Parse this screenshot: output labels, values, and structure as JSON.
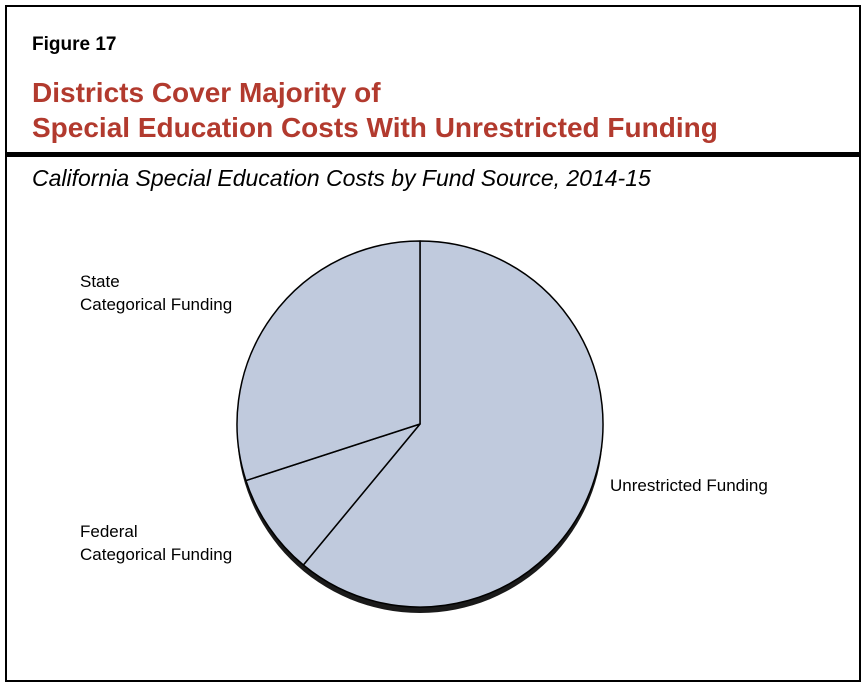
{
  "figure_label": "Figure 17",
  "title_lines": [
    "Districts Cover Majority of",
    "Special Education Costs With Unrestricted Funding"
  ],
  "colors": {
    "title": "#b23a2e",
    "slice_fill": "#c0cadd",
    "slice_stroke": "#000000",
    "shadow": "#1a1a1a"
  },
  "chart_data": {
    "type": "pie",
    "title": "California Special Education Costs by Fund Source, 2014-15",
    "slices": [
      {
        "label_lines": [
          "Unrestricted Funding"
        ],
        "value": 61
      },
      {
        "label_lines": [
          "Federal",
          "Categorical Funding"
        ],
        "value": 9
      },
      {
        "label_lines": [
          "State",
          "Categorical Funding"
        ],
        "value": 30
      }
    ]
  }
}
